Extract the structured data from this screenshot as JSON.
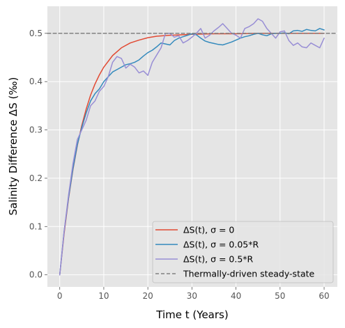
{
  "chart_data": {
    "type": "line",
    "title": "",
    "xlabel": "Time t (Years)",
    "ylabel": "Salinity Difference ΔS (‰)",
    "xlim": [
      -2.8,
      63
    ],
    "ylim": [
      -0.025,
      0.556
    ],
    "xticks": [
      0,
      10,
      20,
      30,
      40,
      50,
      60
    ],
    "xtick_labels": [
      "0",
      "10",
      "20",
      "30",
      "40",
      "50",
      "60"
    ],
    "yticks": [
      0.0,
      0.1,
      0.2,
      0.3,
      0.4,
      0.5
    ],
    "ytick_labels": [
      "0.0",
      "0.1",
      "0.2",
      "0.3",
      "0.4",
      "0.5"
    ],
    "grid": true,
    "legend_position": "lower-right",
    "series": [
      {
        "name": "ΔS(t), σ = 0",
        "color": "#E24A33",
        "style": "solid",
        "x": [
          0,
          1,
          2,
          3,
          4,
          5,
          6,
          7,
          8,
          9,
          10,
          12,
          14,
          16,
          18,
          20,
          22,
          25,
          28,
          30,
          35,
          40,
          45,
          50,
          55,
          60
        ],
        "y": [
          0.0,
          0.086,
          0.158,
          0.218,
          0.268,
          0.309,
          0.343,
          0.372,
          0.395,
          0.414,
          0.43,
          0.454,
          0.47,
          0.48,
          0.486,
          0.491,
          0.494,
          0.496,
          0.497,
          0.498,
          0.499,
          0.499,
          0.5,
          0.5,
          0.5,
          0.5
        ]
      },
      {
        "name": "ΔS(t), σ = 0.05*R",
        "color": "#348ABD",
        "style": "solid",
        "x": [
          0,
          1,
          2,
          3,
          4,
          5,
          6,
          7,
          8,
          9,
          10,
          11,
          12,
          13,
          14,
          15,
          16,
          17,
          18,
          19,
          20,
          21,
          22,
          23,
          24,
          25,
          26,
          27,
          28,
          29,
          30,
          31,
          32,
          33,
          34,
          35,
          36,
          37,
          38,
          39,
          40,
          41,
          42,
          43,
          44,
          45,
          46,
          47,
          48,
          49,
          50,
          51,
          52,
          53,
          54,
          55,
          56,
          57,
          58,
          59,
          60
        ],
        "y": [
          0.0,
          0.09,
          0.16,
          0.22,
          0.27,
          0.305,
          0.335,
          0.36,
          0.375,
          0.385,
          0.4,
          0.41,
          0.42,
          0.425,
          0.43,
          0.435,
          0.437,
          0.44,
          0.445,
          0.453,
          0.46,
          0.465,
          0.472,
          0.48,
          0.478,
          0.476,
          0.485,
          0.49,
          0.493,
          0.496,
          0.499,
          0.497,
          0.49,
          0.484,
          0.481,
          0.479,
          0.477,
          0.476,
          0.479,
          0.482,
          0.486,
          0.49,
          0.493,
          0.495,
          0.498,
          0.5,
          0.497,
          0.495,
          0.499,
          0.5,
          0.5,
          0.501,
          0.499,
          0.505,
          0.506,
          0.504,
          0.508,
          0.506,
          0.505,
          0.51,
          0.507
        ]
      },
      {
        "name": "ΔS(t), σ = 0.5*R",
        "color": "#988ED5",
        "style": "solid",
        "x": [
          0,
          1,
          2,
          3,
          4,
          5,
          6,
          7,
          8,
          9,
          10,
          11,
          12,
          13,
          14,
          15,
          16,
          17,
          18,
          19,
          20,
          21,
          22,
          23,
          24,
          25,
          26,
          27,
          28,
          29,
          30,
          31,
          32,
          33,
          34,
          35,
          36,
          37,
          38,
          39,
          40,
          41,
          42,
          43,
          44,
          45,
          46,
          47,
          48,
          49,
          50,
          51,
          52,
          53,
          54,
          55,
          56,
          57,
          58,
          59,
          60
        ],
        "y": [
          0.0,
          0.09,
          0.165,
          0.23,
          0.28,
          0.3,
          0.32,
          0.35,
          0.36,
          0.38,
          0.39,
          0.41,
          0.44,
          0.452,
          0.448,
          0.428,
          0.436,
          0.43,
          0.418,
          0.422,
          0.413,
          0.44,
          0.455,
          0.47,
          0.5,
          0.5,
          0.492,
          0.495,
          0.48,
          0.485,
          0.492,
          0.5,
          0.51,
          0.49,
          0.496,
          0.505,
          0.512,
          0.52,
          0.51,
          0.5,
          0.496,
          0.49,
          0.51,
          0.514,
          0.52,
          0.53,
          0.525,
          0.51,
          0.5,
          0.49,
          0.503,
          0.505,
          0.485,
          0.475,
          0.48,
          0.472,
          0.47,
          0.48,
          0.475,
          0.47,
          0.49
        ]
      },
      {
        "name": "Thermally-driven steady-state",
        "color": "#808080",
        "style": "dashed",
        "x": [
          -2.8,
          63
        ],
        "y": [
          0.5,
          0.5
        ]
      }
    ]
  }
}
